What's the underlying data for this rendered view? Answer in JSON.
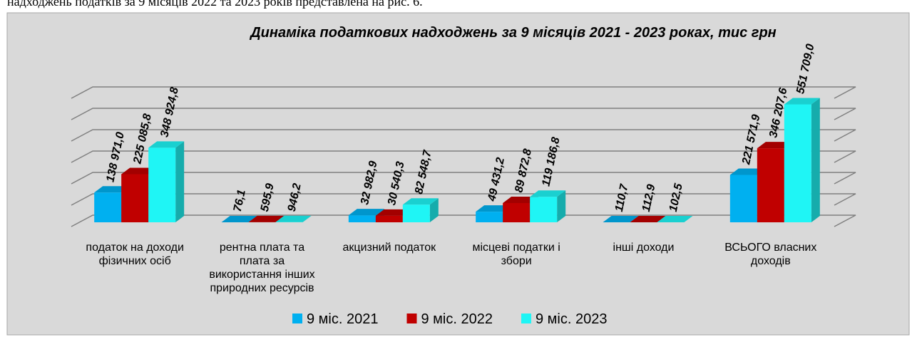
{
  "doc_text": "надходжень податків за 9 місяців 2022 та 2023 років представлена на рис. 6.",
  "chart_data": {
    "type": "bar3d",
    "title": "Динаміка податкових надходжень за 9 місяців 2021 - 2023 роках, тис грн",
    "categories": [
      "податок на доходи фізичних осіб",
      "рентна плата та плата за використання інших природних ресурсів",
      "акцизний податок",
      "місцеві податки і збори",
      "інші доходи",
      "ВСЬОГО власних доходів"
    ],
    "series": [
      {
        "name": "9 міс. 2021",
        "color": "#00b0f0",
        "values": [
          138971.0,
          76.1,
          32982.9,
          49431.2,
          110.7,
          221571.9
        ],
        "value_labels": [
          "138 971,0",
          "76,1",
          "32 982,9",
          "49 431,2",
          "110,7",
          "221 571,9"
        ]
      },
      {
        "name": "9 міс. 2022",
        "color": "#c00000",
        "values": [
          225085.8,
          595.9,
          30540.3,
          89872.8,
          112.9,
          346207.6
        ],
        "value_labels": [
          "225 085,8",
          "595,9",
          "30 540,3",
          "89 872,8",
          "112,9",
          "346 207,6"
        ]
      },
      {
        "name": "9 міс. 2023",
        "color": "#1ff5f5",
        "values": [
          348924.8,
          946.2,
          82548.7,
          119186.8,
          102.5,
          551709.0
        ],
        "value_labels": [
          "348 924,8",
          "946,2",
          "82 548,7",
          "119 186,8",
          "102,5",
          "551 709,0"
        ]
      }
    ],
    "ylim": [
      0,
      600000
    ],
    "yticks": [
      0,
      100000,
      200000,
      300000,
      400000,
      500000,
      600000
    ],
    "grid": true,
    "legend": "bottom"
  }
}
